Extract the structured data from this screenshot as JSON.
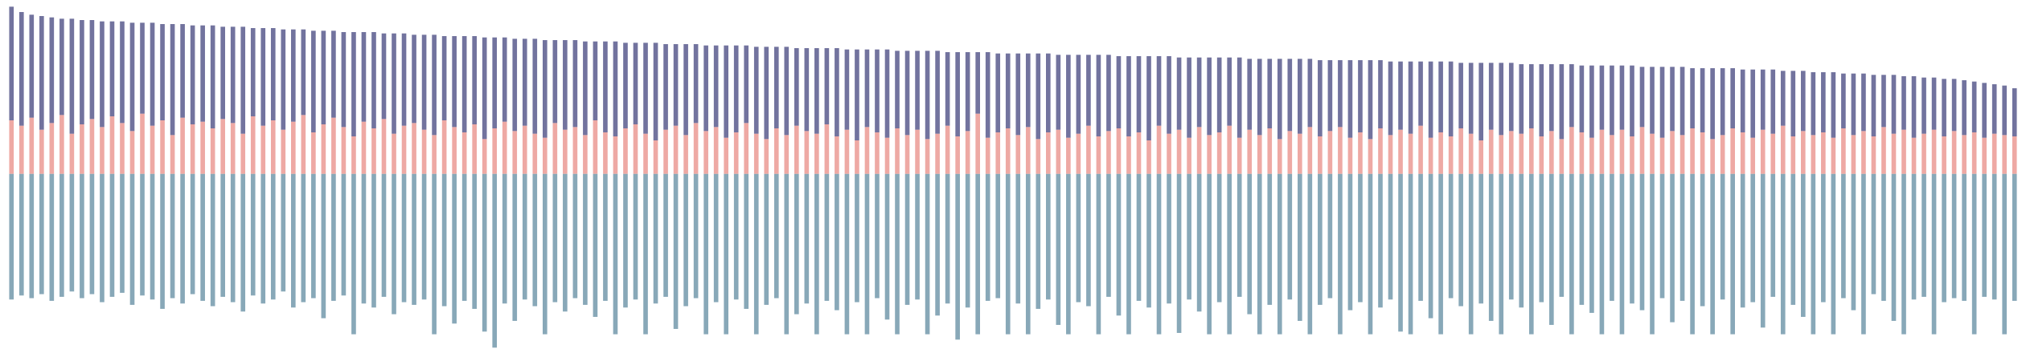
{
  "chart_data": {
    "type": "bar",
    "stacked": true,
    "ylim": [
      -140,
      130
    ],
    "series": [
      {
        "color": "#88a8b8",
        "values": [
          -94,
          -91,
          -93,
          -90,
          -95,
          -92,
          -88,
          -93,
          -90,
          -96,
          -92,
          -89,
          -98,
          -91,
          -94,
          -101,
          -93,
          -97,
          -90,
          -95,
          -99,
          -92,
          -96,
          -103,
          -91,
          -97,
          -94,
          -88,
          -100,
          -96,
          -93,
          -108,
          -95,
          -91,
          -120,
          -97,
          -100,
          -92,
          -105,
          -96,
          -98,
          -94,
          -120,
          -99,
          -112,
          -95,
          -101,
          -118,
          -130,
          -97,
          -110,
          -94,
          -99,
          -120,
          -96,
          -103,
          -93,
          -98,
          -107,
          -95,
          -120,
          -100,
          -94,
          -120,
          -97,
          -92,
          -116,
          -99,
          -93,
          -120,
          -96,
          -120,
          -94,
          -101,
          -120,
          -98,
          -93,
          -120,
          -105,
          -97,
          -120,
          -95,
          -102,
          -120,
          -96,
          -120,
          -93,
          -109,
          -120,
          -98,
          -94,
          -120,
          -106,
          -97,
          -124,
          -100,
          -120,
          -95,
          -93,
          -120,
          -97,
          -120,
          -101,
          -94,
          -113,
          -120,
          -96,
          -99,
          -120,
          -92,
          -106,
          -120,
          -95,
          -100,
          -120,
          -97,
          -119,
          -94,
          -103,
          -120,
          -96,
          -120,
          -92,
          -105,
          -120,
          -98,
          -120,
          -94,
          -110,
          -120,
          -98,
          -93,
          -120,
          -102,
          -96,
          -120,
          -100,
          -94,
          -118,
          -120,
          -95,
          -108,
          -120,
          -93,
          -99,
          -120,
          -97,
          -110,
          -120,
          -94,
          -100,
          -120,
          -96,
          -113,
          -92,
          -120,
          -98,
          -104,
          -120,
          -95,
          -120,
          -97,
          -102,
          -120,
          -93,
          -111,
          -95,
          -120,
          -99,
          -120,
          -94,
          -120,
          -100,
          -96,
          -115,
          -92,
          -120,
          -98,
          -107,
          -120,
          -96,
          -120,
          -93,
          -102,
          -120,
          -90,
          -95,
          -110,
          -120,
          -94,
          -92,
          -120,
          -96,
          -93,
          -95,
          -120,
          -92,
          -94,
          -120,
          -95
        ]
      },
      {
        "color": "#eea9a4",
        "values": [
          40,
          36,
          42,
          33,
          38,
          44,
          30,
          37,
          41,
          35,
          43,
          38,
          32,
          45,
          36,
          40,
          29,
          42,
          37,
          39,
          34,
          41,
          38,
          30,
          43,
          36,
          40,
          33,
          39,
          44,
          31,
          37,
          42,
          35,
          28,
          39,
          34,
          41,
          30,
          36,
          38,
          33,
          29,
          40,
          35,
          31,
          37,
          26,
          34,
          39,
          32,
          36,
          30,
          27,
          38,
          33,
          35,
          29,
          40,
          31,
          28,
          34,
          37,
          30,
          25,
          33,
          36,
          29,
          38,
          32,
          35,
          27,
          31,
          38,
          30,
          26,
          34,
          29,
          36,
          32,
          30,
          37,
          28,
          33,
          25,
          35,
          31,
          27,
          34,
          29,
          33,
          26,
          30,
          36,
          28,
          32,
          45,
          27,
          31,
          34,
          29,
          35,
          26,
          31,
          33,
          27,
          30,
          36,
          28,
          32,
          34,
          28,
          31,
          25,
          36,
          30,
          33,
          27,
          35,
          29,
          31,
          36,
          27,
          33,
          29,
          34,
          26,
          32,
          30,
          35,
          28,
          32,
          35,
          27,
          31,
          26,
          34,
          29,
          33,
          30,
          36,
          27,
          31,
          28,
          34,
          30,
          25,
          33,
          29,
          32,
          30,
          34,
          28,
          32,
          26,
          35,
          31,
          27,
          33,
          29,
          33,
          28,
          35,
          30,
          27,
          32,
          29,
          34,
          31,
          26,
          29,
          34,
          31,
          27,
          33,
          30,
          36,
          28,
          32,
          29,
          31,
          27,
          34,
          29,
          32,
          28,
          35,
          30,
          33,
          27,
          30,
          33,
          28,
          32,
          29,
          31,
          27,
          30,
          29,
          28
        ]
      },
      {
        "color": "#72739e",
        "values": [
          85,
          85,
          77,
          85,
          79,
          72,
          86,
          78,
          74,
          79,
          71,
          76,
          81,
          68,
          77,
          72,
          83,
          70,
          74,
          72,
          77,
          69,
          72,
          80,
          66,
          73,
          69,
          75,
          69,
          64,
          76,
          70,
          65,
          71,
          78,
          67,
          72,
          64,
          75,
          69,
          66,
          71,
          75,
          63,
          68,
          72,
          66,
          76,
          68,
          63,
          69,
          65,
          71,
          73,
          62,
          67,
          65,
          70,
          59,
          68,
          71,
          64,
          61,
          68,
          73,
          64,
          61,
          68,
          59,
          64,
          61,
          69,
          65,
          58,
          65,
          69,
          61,
          66,
          58,
          62,
          64,
          57,
          66,
          60,
          68,
          58,
          62,
          66,
          58,
          63,
          59,
          66,
          62,
          55,
          63,
          59,
          46,
          64,
          59,
          56,
          61,
          55,
          64,
          59,
          56,
          62,
          59,
          53,
          61,
          57,
          54,
          60,
          57,
          63,
          52,
          58,
          54,
          60,
          52,
          58,
          56,
          51,
          60,
          53,
          57,
          52,
          60,
          54,
          56,
          51,
          57,
          53,
          50,
          58,
          54,
          59,
          51,
          55,
          51,
          54,
          48,
          57,
          53,
          56,
          49,
          53,
          58,
          50,
          54,
          51,
          52,
          48,
          54,
          50,
          56,
          47,
          50,
          54,
          48,
          52,
          48,
          53,
          45,
          50,
          53,
          48,
          51,
          45,
          48,
          53,
          50,
          45,
          47,
          51,
          45,
          48,
          41,
          49,
          45,
          47,
          45,
          49,
          41,
          46,
          43,
          46,
          39,
          44,
          40,
          46,
          42,
          39,
          43,
          39,
          41,
          38,
          41,
          37,
          37,
          36
        ]
      }
    ]
  }
}
